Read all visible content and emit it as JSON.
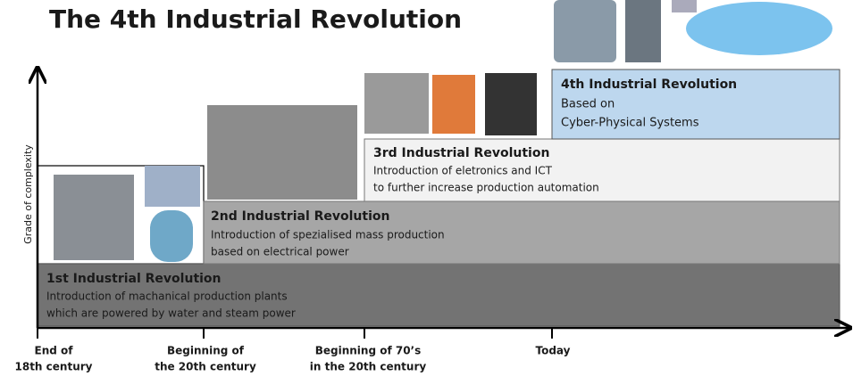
{
  "header": {
    "title": "The 4th Industrial Revolution"
  },
  "y_axis": {
    "label": "Grade of complexity"
  },
  "stages": [
    {
      "title": "1st Industrial Revolution",
      "lines": [
        "Introduction of machanical production plants",
        "which are powered by water and steam power"
      ]
    },
    {
      "title": "2nd Industrial Revolution",
      "lines": [
        "Introduction of spezialised mass production",
        "based on electrical power"
      ]
    },
    {
      "title": "3rd Industrial Revolution",
      "lines": [
        "Introduction of eletronics and ICT",
        "to further increase production automation"
      ]
    },
    {
      "title": "4th Industrial Revolution",
      "lines": [
        "Based on",
        "Cyber-Physical Systems"
      ]
    }
  ],
  "timeline": [
    {
      "lines": [
        "End of",
        "18th century"
      ]
    },
    {
      "lines": [
        "Beginning of",
        "the 20th century"
      ]
    },
    {
      "lines": [
        "Beginning of 70’s",
        "in the 20th century"
      ]
    },
    {
      "lines": [
        "Today"
      ]
    }
  ]
}
